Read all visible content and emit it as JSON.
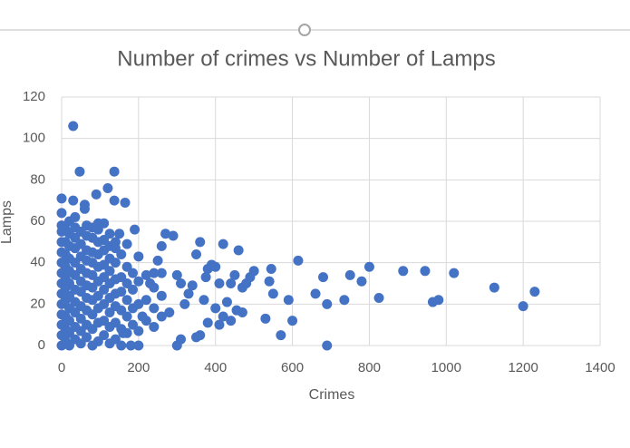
{
  "chart_data": {
    "type": "scatter",
    "title": "Number of crimes vs Number of Lamps",
    "x_label": "Crimes",
    "y_label": "Lamps",
    "color": "#4472c4",
    "grid": true,
    "xlim": [
      0,
      1400
    ],
    "xticks": [
      0,
      200,
      400,
      600,
      800,
      1000,
      1200,
      1400
    ],
    "ylim": [
      0,
      120
    ],
    "yticks": [
      0,
      20,
      40,
      60,
      80,
      100,
      120
    ],
    "x": [
      0,
      0,
      0,
      0,
      0,
      0,
      0,
      0,
      0,
      0,
      0,
      0,
      0,
      0,
      10,
      10,
      10,
      10,
      10,
      10,
      10,
      10,
      10,
      10,
      20,
      20,
      20,
      20,
      20,
      20,
      20,
      20,
      20,
      20,
      20,
      35,
      35,
      35,
      35,
      35,
      35,
      35,
      35,
      35,
      35,
      35,
      50,
      50,
      50,
      50,
      50,
      50,
      50,
      50,
      50,
      50,
      65,
      65,
      65,
      65,
      65,
      65,
      65,
      65,
      65,
      65,
      80,
      80,
      80,
      80,
      80,
      80,
      80,
      80,
      80,
      80,
      95,
      95,
      95,
      95,
      95,
      95,
      95,
      95,
      95,
      95,
      110,
      110,
      110,
      110,
      110,
      110,
      110,
      110,
      110,
      125,
      125,
      125,
      125,
      125,
      125,
      125,
      125,
      125,
      140,
      140,
      140,
      140,
      140,
      140,
      140,
      140,
      155,
      155,
      155,
      155,
      155,
      155,
      170,
      170,
      170,
      170,
      170,
      170,
      185,
      185,
      185,
      185,
      200,
      200,
      200,
      200,
      220,
      220,
      220,
      240,
      240,
      240,
      260,
      260,
      260,
      30,
      47,
      137,
      120,
      90,
      165,
      0,
      30,
      60,
      60,
      137,
      615,
      800,
      888,
      945,
      1020,
      1125,
      1230,
      1200,
      965,
      980,
      825,
      735,
      690,
      660,
      680,
      750,
      780,
      690,
      590,
      600,
      570,
      550,
      540,
      530,
      545,
      500,
      490,
      480,
      470,
      460,
      450,
      440,
      420,
      410,
      400,
      390,
      380,
      375,
      370,
      360,
      350,
      340,
      330,
      320,
      310,
      300,
      290,
      270,
      260,
      250,
      240,
      230,
      210,
      200,
      190,
      180,
      160,
      150,
      420,
      400,
      430,
      440,
      470,
      380,
      410,
      455,
      350,
      360,
      280,
      300,
      310
    ],
    "values": [
      0,
      5,
      10,
      15,
      20,
      25,
      30,
      35,
      40,
      45,
      50,
      55,
      58,
      64,
      2,
      8,
      14,
      22,
      28,
      33,
      38,
      44,
      50,
      56,
      0,
      6,
      12,
      18,
      24,
      30,
      36,
      42,
      48,
      54,
      60,
      3,
      9,
      16,
      21,
      27,
      34,
      40,
      47,
      52,
      57,
      62,
      1,
      7,
      13,
      19,
      26,
      31,
      37,
      43,
      49,
      55,
      4,
      10,
      17,
      23,
      29,
      35,
      41,
      46,
      53,
      58,
      0,
      8,
      15,
      22,
      28,
      34,
      40,
      45,
      52,
      57,
      2,
      11,
      18,
      24,
      31,
      38,
      44,
      50,
      56,
      59,
      5,
      12,
      20,
      27,
      33,
      39,
      46,
      51,
      59,
      1,
      9,
      16,
      23,
      30,
      36,
      42,
      48,
      54,
      3,
      11,
      19,
      25,
      32,
      40,
      47,
      50,
      0,
      8,
      17,
      26,
      33,
      44,
      6,
      14,
      22,
      30,
      38,
      49,
      10,
      18,
      27,
      35,
      7,
      20,
      31,
      43,
      12,
      22,
      34,
      9,
      18,
      28,
      14,
      24,
      35,
      106,
      84,
      84,
      76,
      73,
      69,
      71,
      70,
      68,
      66,
      70,
      41,
      38,
      36,
      36,
      35,
      28,
      26,
      19,
      21,
      22,
      23,
      22,
      20,
      25,
      33,
      34,
      31,
      0,
      22,
      12,
      5,
      25,
      31,
      13,
      37,
      36,
      33,
      30,
      16,
      46,
      34,
      30,
      49,
      30,
      38,
      39,
      37,
      33,
      22,
      50,
      44,
      29,
      25,
      20,
      3,
      0,
      53,
      54,
      48,
      41,
      35,
      30,
      14,
      0,
      56,
      0,
      6,
      54,
      14,
      18,
      21,
      12,
      28,
      11,
      10,
      17,
      4,
      5,
      16,
      34,
      30
    ]
  }
}
